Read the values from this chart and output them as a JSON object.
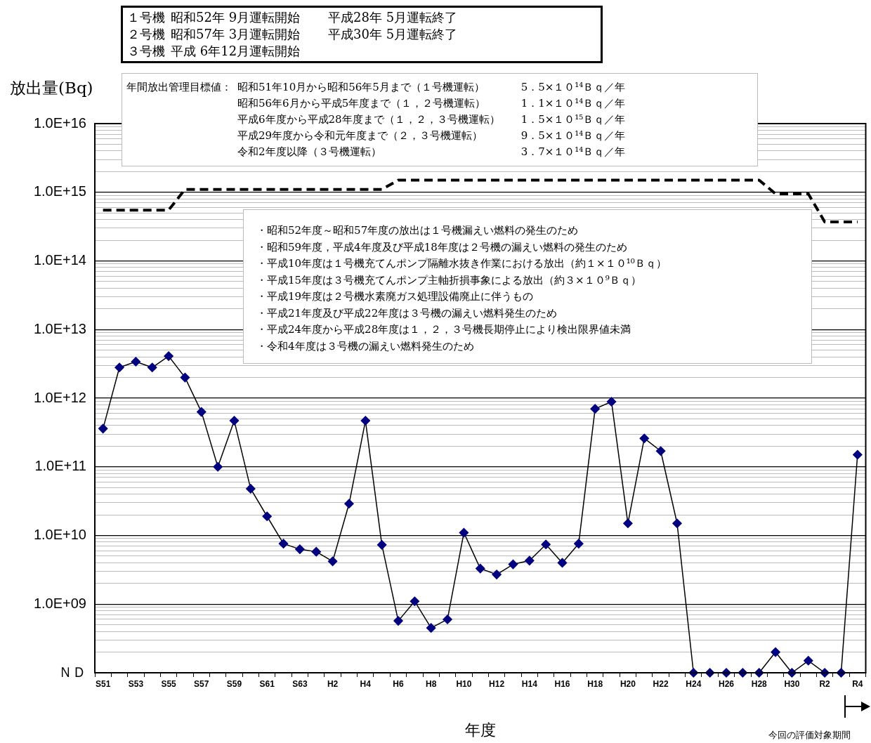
{
  "chart_data": {
    "type": "line",
    "xlabel": "年度",
    "ylabel": "放出量(Bq)",
    "categories": [
      "S51",
      null,
      "S53",
      null,
      "S55",
      null,
      "S57",
      null,
      "S59",
      null,
      "S61",
      null,
      "S63",
      null,
      "H2",
      null,
      "H4",
      null,
      "H6",
      null,
      "H8",
      null,
      "H10",
      null,
      "H12",
      null,
      "H14",
      null,
      "H16",
      null,
      "H18",
      null,
      "H20",
      null,
      "H22",
      null,
      "H24",
      null,
      "H26",
      null,
      "H28",
      null,
      "H30",
      null,
      "R2",
      null,
      "R4"
    ],
    "series": [
      {
        "color": "#000000",
        "line_style": "dashed",
        "marker": "none",
        "values": [
          550000000000000.0,
          550000000000000.0,
          550000000000000.0,
          550000000000000.0,
          550000000000000.0,
          1100000000000000.0,
          1100000000000000.0,
          1100000000000000.0,
          1100000000000000.0,
          1100000000000000.0,
          1100000000000000.0,
          1100000000000000.0,
          1100000000000000.0,
          1100000000000000.0,
          1100000000000000.0,
          1100000000000000.0,
          1100000000000000.0,
          1100000000000000.0,
          1500000000000000.0,
          1500000000000000.0,
          1500000000000000.0,
          1500000000000000.0,
          1500000000000000.0,
          1500000000000000.0,
          1500000000000000.0,
          1500000000000000.0,
          1500000000000000.0,
          1500000000000000.0,
          1500000000000000.0,
          1500000000000000.0,
          1500000000000000.0,
          1500000000000000.0,
          1500000000000000.0,
          1500000000000000.0,
          1500000000000000.0,
          1500000000000000.0,
          1500000000000000.0,
          1500000000000000.0,
          1500000000000000.0,
          1500000000000000.0,
          1500000000000000.0,
          950000000000000.0,
          950000000000000.0,
          950000000000000.0,
          370000000000000.0,
          370000000000000.0,
          370000000000000.0
        ]
      },
      {
        "color": "#000080",
        "line_style": "solid",
        "marker": "diamond",
        "values": [
          360000000000.0,
          2800000000000.0,
          3400000000000.0,
          2800000000000.0,
          4100000000000.0,
          2000000000000.0,
          630000000000.0,
          100000000000.0,
          470000000000.0,
          48000000000.0,
          19000000000.0,
          7600000000.0,
          6300000000.0,
          5800000000.0,
          4200000000.0,
          29000000000.0,
          470000000000.0,
          7300000000.0,
          570000000.0,
          1100000000.0,
          450000000.0,
          600000000.0,
          11000000000.0,
          3300000000.0,
          2700000000.0,
          3800000000.0,
          4300000000.0,
          7400000000.0,
          4000000000.0,
          7600000000.0,
          700000000000.0,
          890000000000.0,
          15000000000.0,
          260000000000.0,
          170000000000.0,
          15000000000.0,
          100000000.0,
          100000000.0,
          100000000.0,
          100000000.0,
          100000000.0,
          200000000.0,
          100000000.0,
          150000000.0,
          100000000.0,
          100000000.0,
          150000000000.0
        ]
      }
    ],
    "log": "y",
    "ylim": [
      100000000.0,
      1e+16
    ],
    "yticks": [
      {
        "value": 100000000.0,
        "label": "ＮＤ"
      },
      {
        "value": 200000000.0,
        "label": null
      },
      {
        "value": 300000000.0,
        "label": null
      },
      {
        "value": 400000000.0,
        "label": null
      },
      {
        "value": 500000000.0,
        "label": null
      },
      {
        "value": 600000000.0,
        "label": null
      },
      {
        "value": 700000000.0,
        "label": null
      },
      {
        "value": 800000000.0,
        "label": null
      },
      {
        "value": 900000000.0,
        "label": null
      },
      {
        "value": 1000000000.0,
        "label": "1.0E+09"
      },
      {
        "value": 2000000000.0,
        "label": null
      },
      {
        "value": 3000000000.0,
        "label": null
      },
      {
        "value": 4000000000.0,
        "label": null
      },
      {
        "value": 5000000000.0,
        "label": null
      },
      {
        "value": 6000000000.0,
        "label": null
      },
      {
        "value": 7000000000.0,
        "label": null
      },
      {
        "value": 8000000000.0,
        "label": null
      },
      {
        "value": 9000000000.0,
        "label": null
      },
      {
        "value": 10000000000.0,
        "label": "1.0E+10"
      },
      {
        "value": 20000000000.0,
        "label": null
      },
      {
        "value": 30000000000.0,
        "label": null
      },
      {
        "value": 40000000000.0,
        "label": null
      },
      {
        "value": 50000000000.0,
        "label": null
      },
      {
        "value": 60000000000.0,
        "label": null
      },
      {
        "value": 70000000000.0,
        "label": null
      },
      {
        "value": 80000000000.0,
        "label": null
      },
      {
        "value": 90000000000.0,
        "label": null
      },
      {
        "value": 100000000000.0,
        "label": "1.0E+11"
      },
      {
        "value": 200000000000.0,
        "label": null
      },
      {
        "value": 300000000000.0,
        "label": null
      },
      {
        "value": 400000000000.0,
        "label": null
      },
      {
        "value": 500000000000.0,
        "label": null
      },
      {
        "value": 600000000000.0,
        "label": null
      },
      {
        "value": 700000000000.0,
        "label": null
      },
      {
        "value": 800000000000.0,
        "label": null
      },
      {
        "value": 900000000000.0,
        "label": null
      },
      {
        "value": 1000000000000.0,
        "label": "1.0E+12"
      },
      {
        "value": 2000000000000.0,
        "label": null
      },
      {
        "value": 3000000000000.0,
        "label": null
      },
      {
        "value": 4000000000000.0,
        "label": null
      },
      {
        "value": 5000000000000.0,
        "label": null
      },
      {
        "value": 6000000000000.0,
        "label": null
      },
      {
        "value": 7000000000000.0,
        "label": null
      },
      {
        "value": 8000000000000.0,
        "label": null
      },
      {
        "value": 9000000000000.0,
        "label": null
      },
      {
        "value": 10000000000000.0,
        "label": "1.0E+13"
      },
      {
        "value": 20000000000000.0,
        "label": null
      },
      {
        "value": 30000000000000.0,
        "label": null
      },
      {
        "value": 40000000000000.0,
        "label": null
      },
      {
        "value": 50000000000000.0,
        "label": null
      },
      {
        "value": 60000000000000.0,
        "label": null
      },
      {
        "value": 70000000000000.0,
        "label": null
      },
      {
        "value": 80000000000000.0,
        "label": null
      },
      {
        "value": 90000000000000.0,
        "label": null
      },
      {
        "value": 100000000000000.0,
        "label": "1.0E+14"
      },
      {
        "value": 200000000000000.0,
        "label": null
      },
      {
        "value": 300000000000000.0,
        "label": null
      },
      {
        "value": 400000000000000.0,
        "label": null
      },
      {
        "value": 500000000000000.0,
        "label": null
      },
      {
        "value": 600000000000000.0,
        "label": null
      },
      {
        "value": 700000000000000.0,
        "label": null
      },
      {
        "value": 800000000000000.0,
        "label": null
      },
      {
        "value": 900000000000000.0,
        "label": null
      },
      {
        "value": 1000000000000000.0,
        "label": "1.0E+15"
      },
      {
        "value": 2000000000000000.0,
        "label": null
      },
      {
        "value": 3000000000000000.0,
        "label": null
      },
      {
        "value": 4000000000000000.0,
        "label": null
      },
      {
        "value": 5000000000000000.0,
        "label": null
      },
      {
        "value": 6000000000000000.0,
        "label": null
      },
      {
        "value": 7000000000000000.0,
        "label": null
      },
      {
        "value": 8000000000000000.0,
        "label": null
      },
      {
        "value": 9000000000000000.0,
        "label": null
      },
      {
        "value": 1e+16,
        "label": "1.0E+16"
      }
    ],
    "grid": "y",
    "legend": false,
    "annotations": [
      "１号機\t昭和52年 9月運転開始\t平成28年 5月運転終了",
      "２号機\t昭和57年 3月運転開始\t平成30年 5月運転終了",
      "３号機\t平成 6年12月運転開始",
      "年間放出管理目標値：\t昭和51年10月から昭和56年5月まで（１号機運転）\t5．5×１０¹⁴Ｂｑ／年",
      "\t昭和56年6月から平成5年度まで（１，２号機運転）\t1．1×１０¹⁴Ｂｑ／年",
      "\t平成6年度から平成28年度まで（１，２，３号機運転）\t1．5×１０¹⁵Ｂｑ／年",
      "\t平成29年度から令和元年度まで（２，３号機運転）\t9．5×１０¹⁴Ｂｑ／年",
      "\t令和2年度以降（３号機運転）\t3．7×１０¹⁴Ｂｑ／年",
      "・昭和52年度～昭和57年度の放出は１号機漏えい燃料の発生のため",
      "・昭和59年度，平成4年度及び平成18年度は２号機の漏えい燃料の発生のため",
      "・平成10年度は１号機充てんポンプ隔離水抜き作業における放出（約１×１０¹⁰Ｂｑ）",
      "・平成15年度は３号機充てんポンプ主軸折損事象による放出（約３×１０⁹Ｂｑ）",
      "・平成19年度は２号機水素廃ガス処理設備廃止に伴うもの",
      "・平成21年度及び平成22年度は３号機の漏えい燃料発生のため",
      "・平成24年度から平成28年度は１，２，３号機長期停止により検出限界値未満",
      "・令和4年度は３号機の漏えい燃料発生のため",
      "今回の評価対象期間"
    ]
  }
}
